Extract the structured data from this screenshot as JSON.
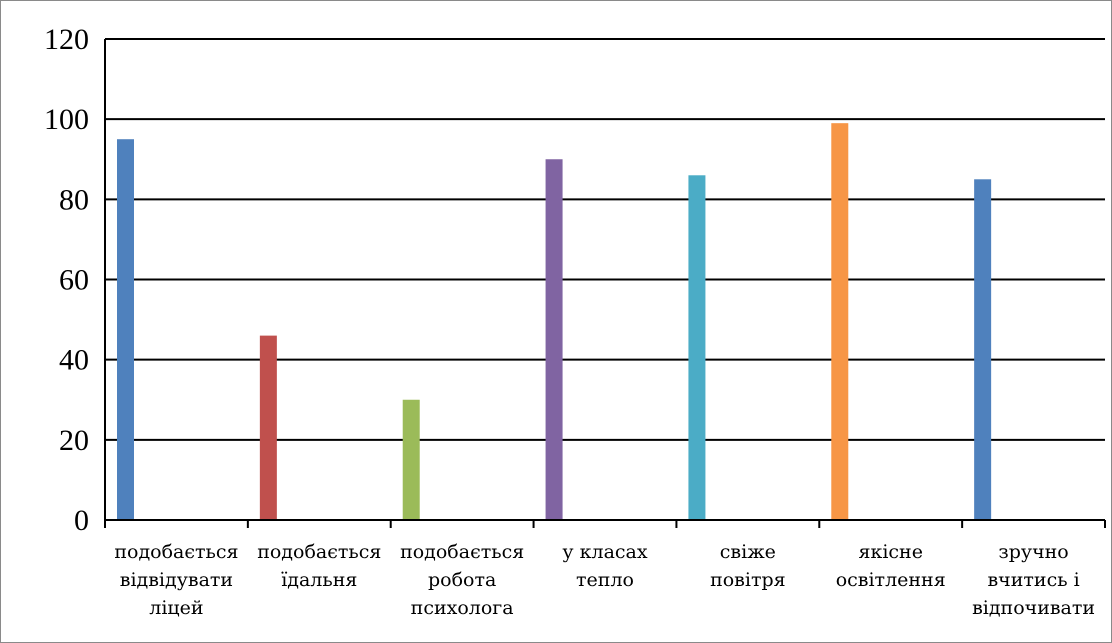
{
  "chart_data": {
    "type": "bar",
    "categories": [
      [
        "подобається",
        "відвідувати",
        "ліцей"
      ],
      [
        "подобається",
        "їдальня"
      ],
      [
        "подобається",
        "робота",
        "психолога"
      ],
      [
        "у класах",
        "тепло"
      ],
      [
        "свіже",
        "повітря"
      ],
      [
        "якісне",
        "освітлення"
      ],
      [
        "зручно",
        "вчитись і",
        "відпочивати"
      ]
    ],
    "values": [
      95,
      46,
      30,
      90,
      86,
      99,
      85
    ],
    "colors": [
      "#4f81bd",
      "#c0504d",
      "#9bbb59",
      "#8064a2",
      "#4bacc6",
      "#f79646",
      "#4f81bd"
    ],
    "ylim": [
      0,
      120
    ],
    "yticks": [
      "0",
      "20",
      "40",
      "60",
      "80",
      "100",
      "120"
    ],
    "grid": true,
    "legend": "none"
  }
}
